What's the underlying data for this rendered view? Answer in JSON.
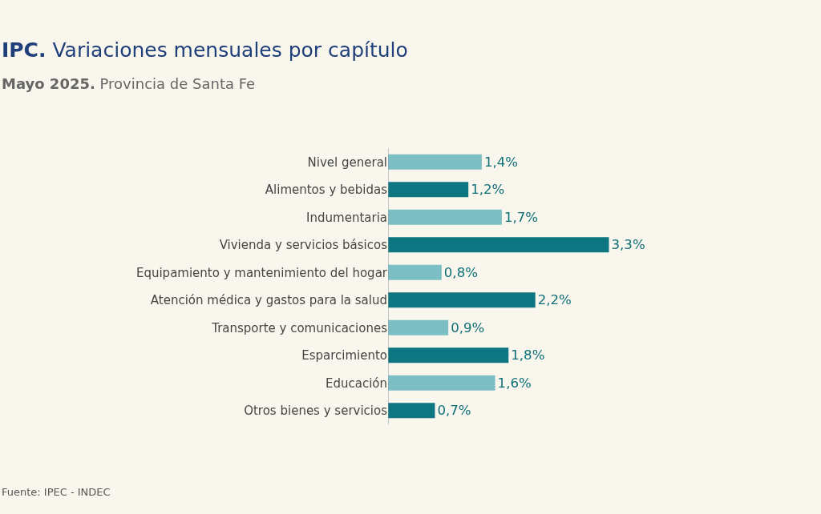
{
  "chart_data": {
    "type": "bar",
    "orientation": "horizontal",
    "title": "IPC. Variaciones mensuales por capítulo",
    "subtitle": "Mayo 2025. Provincia de Santa Fe",
    "categories": [
      "Nivel general",
      "Alimentos y bebidas",
      "Indumentaria",
      "Vivienda y servicios básicos",
      "Equipamiento y mantenimiento del hogar",
      "Atención médica y gastos para la salud",
      "Transporte y comunicaciones",
      "Esparcimiento",
      "Educación",
      "Otros bienes y servicios"
    ],
    "values": [
      1.4,
      1.2,
      1.7,
      3.3,
      0.8,
      2.2,
      0.9,
      1.8,
      1.6,
      0.7
    ],
    "value_labels": [
      "1,4%",
      "1,2%",
      "1,7%",
      "3,3%",
      "0,8%",
      "2,2%",
      "0,9%",
      "1,8%",
      "1,6%",
      "0,7%"
    ],
    "colors": [
      "#7bbfc4",
      "#0e7680",
      "#7bbfc4",
      "#0e7680",
      "#7bbfc4",
      "#0e7680",
      "#7bbfc4",
      "#0e7680",
      "#7bbfc4",
      "#0e7680"
    ],
    "tick_labels": "y",
    "grid": false,
    "legend": false,
    "annotations": [
      "Fuente: IPEC - INDEC"
    ]
  }
}
